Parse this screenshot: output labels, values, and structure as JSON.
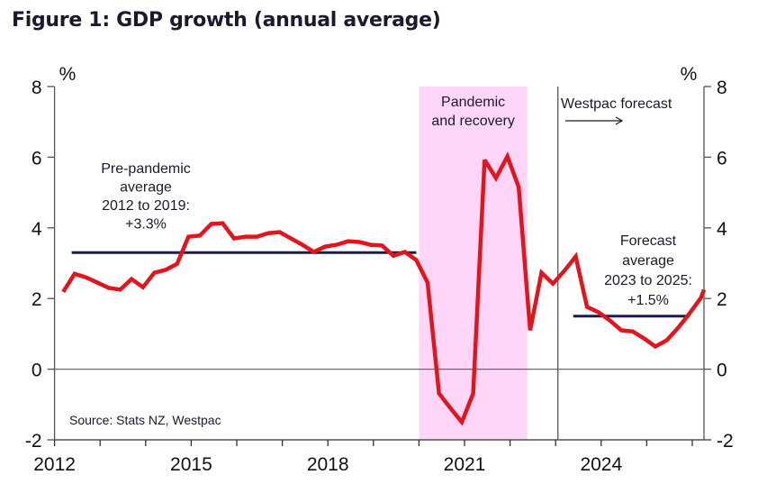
{
  "title": "Figure 1: GDP growth (annual average)",
  "chart_data": {
    "type": "line",
    "title": "Figure 1: GDP growth (annual average)",
    "xlabel": "",
    "ylabel": "%",
    "ylabel_right": "%",
    "ylim": [
      -2,
      8
    ],
    "yticks": [
      -2,
      0,
      2,
      4,
      6,
      8
    ],
    "ytick_labels": [
      "-2",
      "0",
      "2",
      "4",
      "6",
      "8"
    ],
    "xlim": [
      2012,
      2026.25
    ],
    "xticks": [
      2012,
      2013,
      2014,
      2015,
      2016,
      2017,
      2018,
      2019,
      2020,
      2021,
      2022,
      2023,
      2024,
      2025,
      2026
    ],
    "xtick_labels": [
      {
        "year": 2012,
        "label": "2012"
      },
      {
        "year": 2015,
        "label": "2015"
      },
      {
        "year": 2018,
        "label": "2018"
      },
      {
        "year": 2021,
        "label": "2021"
      },
      {
        "year": 2024,
        "label": "2024"
      }
    ],
    "grid": false,
    "series": [
      {
        "name": "GDP growth (annual average)",
        "color": "#e3141b",
        "start": 2012.19,
        "step": 0.25,
        "values": [
          2.19,
          2.7,
          2.6,
          2.45,
          2.3,
          2.25,
          2.55,
          2.32,
          2.73,
          2.81,
          2.98,
          3.75,
          3.78,
          4.11,
          4.13,
          3.7,
          3.75,
          3.75,
          3.85,
          3.88,
          3.7,
          3.52,
          3.32,
          3.47,
          3.52,
          3.62,
          3.6,
          3.52,
          3.5,
          3.21,
          3.32,
          3.09,
          2.45,
          -0.69,
          -1.1,
          -1.5,
          -0.69,
          5.92,
          5.41,
          6.02,
          5.15,
          1.1,
          2.73,
          2.42,
          2.78,
          3.19,
          1.76,
          1.61,
          1.38,
          1.1,
          1.07,
          0.87,
          0.64,
          0.82,
          1.17,
          1.58,
          2.02,
          2.25
        ]
      }
    ],
    "reference_lines": [
      {
        "name": "Pre-pandemic average",
        "value": 3.3,
        "from": 2012.19,
        "to": 2020.0,
        "color": "#1c1a4f"
      },
      {
        "name": "Forecast average",
        "value": 1.5,
        "from": 2023.2,
        "to": 2026.0,
        "color": "#1c1a4f"
      }
    ],
    "shaded_region": {
      "label_lines": [
        "Pandemic",
        "and recovery"
      ],
      "from": 2020.0,
      "to": 2022.38,
      "color": "#ffd6f7"
    },
    "forecast_marker": {
      "year": 2023.05,
      "label": "Westpac forecast",
      "arrow": "right"
    },
    "annotations": {
      "pre_pandemic": [
        "Pre-pandemic",
        "average",
        "2012 to 2019:",
        "+3.3%"
      ],
      "forecast": [
        "Forecast",
        "average",
        "2023 to 2025:",
        "+1.5%"
      ]
    },
    "source": "Source: Stats NZ, Westpac"
  }
}
